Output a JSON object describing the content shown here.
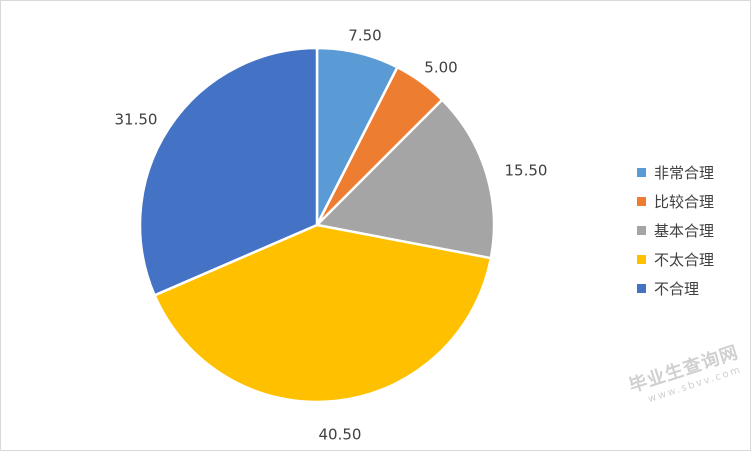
{
  "chart_data": {
    "type": "pie",
    "title": "",
    "start_angle_deg": 0,
    "direction": "clockwise",
    "labels_shown": "values",
    "legend_position": "right",
    "slices": [
      {
        "name": "非常合理",
        "value": 7.5,
        "label": "7.50",
        "color": "#5B9BD5"
      },
      {
        "name": "比较合理",
        "value": 5.0,
        "label": "5.00",
        "color": "#ED7D31"
      },
      {
        "name": "基本合理",
        "value": 15.5,
        "label": "15.50",
        "color": "#A5A5A5"
      },
      {
        "name": "不太合理",
        "value": 40.5,
        "label": "40.50",
        "color": "#FFC000"
      },
      {
        "name": "不合理",
        "value": 31.5,
        "label": "31.50",
        "color": "#4472C4"
      }
    ]
  },
  "watermark": {
    "text": "毕业生查询网",
    "url": "www.sbvv.com"
  }
}
